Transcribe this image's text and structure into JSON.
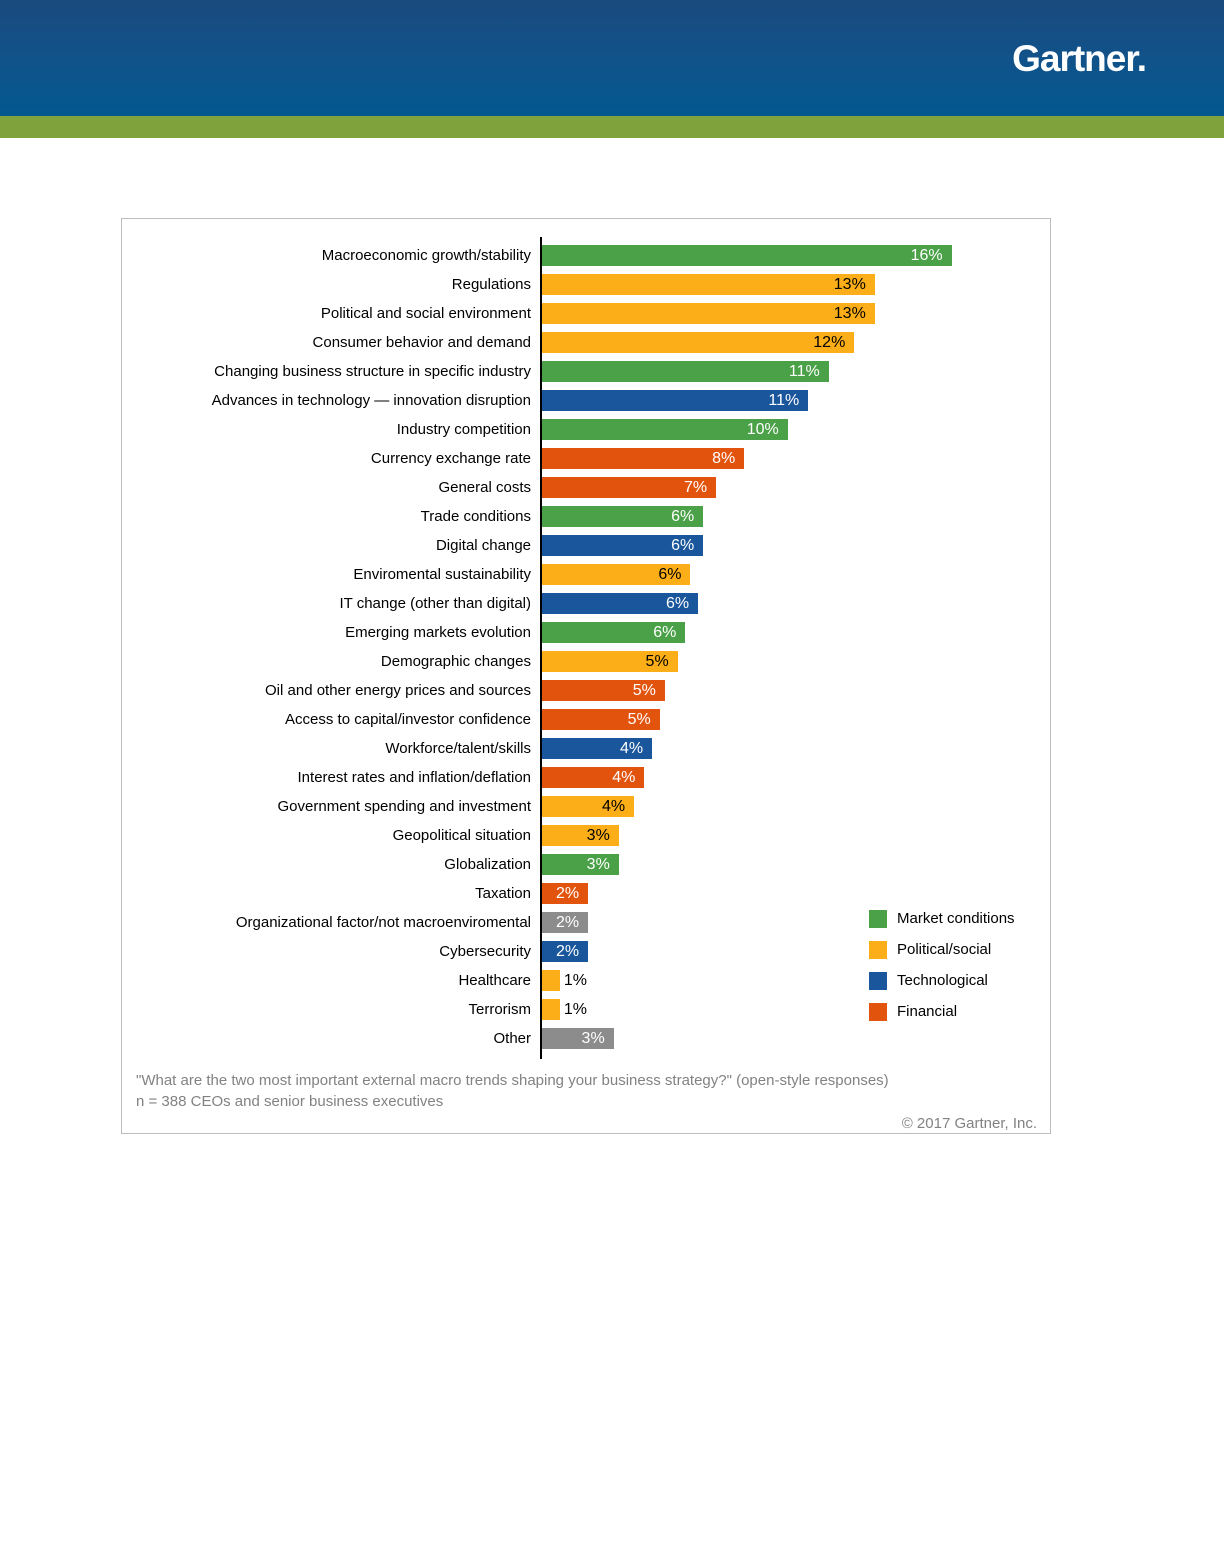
{
  "header": {
    "logo": "Gartner."
  },
  "chart": {
    "colors": {
      "market": "#4aa147",
      "political": "#fbae17",
      "technological": "#1a569b",
      "financial": "#e2540e",
      "other": "#8c8c8c"
    },
    "legend": [
      {
        "label": "Market conditions",
        "group": "market"
      },
      {
        "label": "Political/social",
        "group": "political"
      },
      {
        "label": "Technological",
        "group": "technological"
      },
      {
        "label": "Financial",
        "group": "financial"
      }
    ],
    "footnote_line1": "\"What are the two most important external macro trends shaping your business strategy?\" (open-style responses)",
    "footnote_line2": "n = 388 CEOs and senior business executives",
    "copyright": "© 2017 Gartner, Inc."
  },
  "chart_data": {
    "type": "bar",
    "orientation": "horizontal",
    "value_label_position": "inside-end",
    "legend_position": "bottom-right",
    "xlim": [
      0,
      20
    ],
    "rows": [
      {
        "label": "Macroeconomic growth/stability",
        "value": 16,
        "display": "16%",
        "group": "market",
        "bar_pct": 16.0
      },
      {
        "label": "Regulations",
        "value": 13,
        "display": "13%",
        "group": "political",
        "bar_pct": 13.0
      },
      {
        "label": "Political and social environment",
        "value": 13,
        "display": "13%",
        "group": "political",
        "bar_pct": 13.0
      },
      {
        "label": "Consumer behavior and demand",
        "value": 12,
        "display": "12%",
        "group": "political",
        "bar_pct": 12.2
      },
      {
        "label": "Changing business structure in specific industry",
        "value": 11,
        "display": "11%",
        "group": "market",
        "bar_pct": 11.2
      },
      {
        "label": "Advances in technology — innovation disruption",
        "value": 11,
        "display": "11%",
        "group": "technological",
        "bar_pct": 10.4
      },
      {
        "label": "Industry competition",
        "value": 10,
        "display": "10%",
        "group": "market",
        "bar_pct": 9.6
      },
      {
        "label": "Currency exchange rate",
        "value": 8,
        "display": "8%",
        "group": "financial",
        "bar_pct": 7.9
      },
      {
        "label": "General costs",
        "value": 7,
        "display": "7%",
        "group": "financial",
        "bar_pct": 6.8
      },
      {
        "label": "Trade conditions",
        "value": 6,
        "display": "6%",
        "group": "market",
        "bar_pct": 6.3
      },
      {
        "label": "Digital change",
        "value": 6,
        "display": "6%",
        "group": "technological",
        "bar_pct": 6.3
      },
      {
        "label": "Enviromental sustainability",
        "value": 6,
        "display": "6%",
        "group": "political",
        "bar_pct": 5.8
      },
      {
        "label": "IT change (other than digital)",
        "value": 6,
        "display": "6%",
        "group": "technological",
        "bar_pct": 6.1
      },
      {
        "label": "Emerging markets evolution",
        "value": 6,
        "display": "6%",
        "group": "market",
        "bar_pct": 5.6
      },
      {
        "label": "Demographic changes",
        "value": 5,
        "display": "5%",
        "group": "political",
        "bar_pct": 5.3
      },
      {
        "label": "Oil and other energy prices and sources",
        "value": 5,
        "display": "5%",
        "group": "financial",
        "bar_pct": 4.8
      },
      {
        "label": "Access to capital/investor confidence",
        "value": 5,
        "display": "5%",
        "group": "financial",
        "bar_pct": 4.6
      },
      {
        "label": "Workforce/talent/skills",
        "value": 4,
        "display": "4%",
        "group": "technological",
        "bar_pct": 4.3
      },
      {
        "label": "Interest rates and inflation/deflation",
        "value": 4,
        "display": "4%",
        "group": "financial",
        "bar_pct": 4.0
      },
      {
        "label": "Government spending and investment",
        "value": 4,
        "display": "4%",
        "group": "political",
        "bar_pct": 3.6
      },
      {
        "label": "Geopolitical situation",
        "value": 3,
        "display": "3%",
        "group": "political",
        "bar_pct": 3.0
      },
      {
        "label": "Globalization",
        "value": 3,
        "display": "3%",
        "group": "market",
        "bar_pct": 3.0
      },
      {
        "label": "Taxation",
        "value": 2,
        "display": "2%",
        "group": "financial",
        "bar_pct": 1.8
      },
      {
        "label": "Organizational factor/not macroenviromental",
        "value": 2,
        "display": "2%",
        "group": "other",
        "bar_pct": 1.8
      },
      {
        "label": "Cybersecurity",
        "value": 2,
        "display": "2%",
        "group": "technological",
        "bar_pct": 1.8
      },
      {
        "label": "Healthcare",
        "value": 1,
        "display": "1%",
        "group": "political",
        "bar_pct": 0.7,
        "label_outside": true
      },
      {
        "label": "Terrorism",
        "value": 1,
        "display": "1%",
        "group": "political",
        "bar_pct": 0.7,
        "label_outside": true
      },
      {
        "label": "Other",
        "value": 3,
        "display": "3%",
        "group": "other",
        "bar_pct": 2.8
      }
    ]
  }
}
